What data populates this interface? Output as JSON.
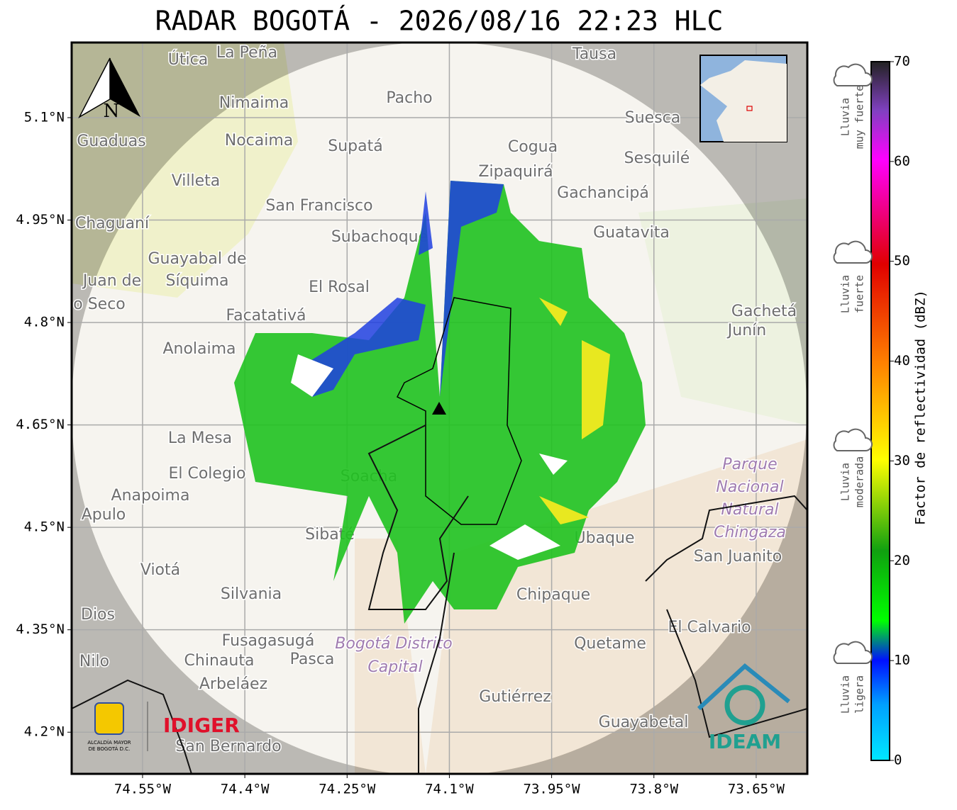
{
  "title": "RADAR BOGOTÁ - 2026/08/16 22:23 HLC",
  "map": {
    "xlim": [
      -74.654,
      -73.575
    ],
    "ylim": [
      4.139,
      5.21
    ],
    "xticks": [
      {
        "value": -74.55,
        "label": "74.55°W"
      },
      {
        "value": -74.4,
        "label": "74.4°W"
      },
      {
        "value": -74.25,
        "label": "74.25°W"
      },
      {
        "value": -74.1,
        "label": "74.1°W"
      },
      {
        "value": -73.95,
        "label": "73.95°W"
      },
      {
        "value": -73.8,
        "label": "73.8°W"
      },
      {
        "value": -73.65,
        "label": "73.65°W"
      }
    ],
    "yticks": [
      {
        "value": 5.1,
        "label": "5.1°N"
      },
      {
        "value": 4.95,
        "label": "4.95°N"
      },
      {
        "value": 4.8,
        "label": "4.8°N"
      },
      {
        "value": 4.65,
        "label": "4.65°N"
      },
      {
        "value": 4.5,
        "label": "4.5°N"
      },
      {
        "value": 4.35,
        "label": "4.35°N"
      },
      {
        "value": 4.2,
        "label": "4.2°N"
      }
    ],
    "grid": true,
    "places": [
      "Útica",
      "La Peña",
      "Tausa",
      "Nimaima",
      "Pacho",
      "Suesca",
      "Guaduas",
      "Nocaima",
      "Supatá",
      "Cogua",
      "Sesquilé",
      "Villeta",
      "Zipaquirá",
      "Gachancipá",
      "San Francisco",
      "Chaguaní",
      "Subachoque",
      "Guatavita",
      "Guayabal de",
      "Síquima",
      "Juan de",
      "El Rosal",
      "o Seco",
      "Facatativá",
      "Gachetá",
      "Junín",
      "Anolaima",
      "La Mesa",
      "Parque",
      "Nacional",
      "Natural",
      "El Colegio",
      "Soacha",
      "Chingaza",
      "Anapoima",
      "Apulo",
      "San Juanito",
      "Sibaté",
      "Ubaque",
      "Viotá",
      "Silvania",
      "Chipaque",
      "Dios",
      "El Calvario",
      "Fusagasugá",
      "Bogotá Distrito",
      "Capital",
      "Quetame",
      "Nilo",
      "Chinauta",
      "Pasca",
      "Arbeláez",
      "Gutiérrez",
      "Guayabetal",
      "San Bernardo"
    ],
    "north": "N"
  },
  "colorbar": {
    "label": "Factor de reflectividad (dBZ)",
    "lim": [
      0,
      70
    ],
    "ticks": [
      0,
      10,
      20,
      30,
      40,
      50,
      60,
      70
    ]
  },
  "legend": [
    {
      "lines": [
        "Lluvia",
        "muy fuerte"
      ]
    },
    {
      "lines": [
        "Lluvia",
        "fuerte"
      ]
    },
    {
      "lines": [
        "Lluvia",
        "moderada"
      ]
    },
    {
      "lines": [
        "Lluvia",
        "ligera"
      ]
    }
  ],
  "logos": {
    "alcaldia": [
      "ALCALDÍA MAYOR",
      "DE BOGOTÁ D.C."
    ],
    "idiger": "IDIGER",
    "ideam": "IDEAM"
  }
}
